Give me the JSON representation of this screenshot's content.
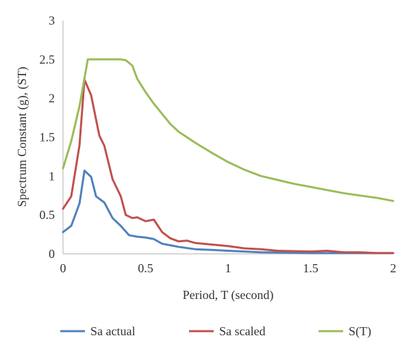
{
  "chart_data": {
    "type": "line",
    "title": "",
    "xlabel": "Period, T (second)",
    "ylabel": "Spectrum Constant (g), (ST)",
    "xlim": [
      0,
      2
    ],
    "ylim": [
      0,
      3
    ],
    "x_ticks": [
      "0",
      "0.5",
      "1",
      "1.5",
      "2"
    ],
    "y_ticks": [
      "0",
      "0.5",
      "1",
      "1.5",
      "2",
      "2.5",
      "3"
    ],
    "grid": false,
    "legend_position": "bottom",
    "series": [
      {
        "name": "Sa actual",
        "color": "#4f81bd",
        "points": [
          [
            0.0,
            0.28
          ],
          [
            0.05,
            0.36
          ],
          [
            0.1,
            0.65
          ],
          [
            0.13,
            1.07
          ],
          [
            0.17,
            0.99
          ],
          [
            0.2,
            0.74
          ],
          [
            0.25,
            0.66
          ],
          [
            0.3,
            0.46
          ],
          [
            0.35,
            0.36
          ],
          [
            0.4,
            0.24
          ],
          [
            0.45,
            0.22
          ],
          [
            0.5,
            0.21
          ],
          [
            0.55,
            0.19
          ],
          [
            0.6,
            0.13
          ],
          [
            0.7,
            0.09
          ],
          [
            0.8,
            0.06
          ],
          [
            0.9,
            0.05
          ],
          [
            1.0,
            0.04
          ],
          [
            1.2,
            0.02
          ],
          [
            1.5,
            0.01
          ],
          [
            2.0,
            0.01
          ]
        ]
      },
      {
        "name": "Sa scaled",
        "color": "#c0504d",
        "points": [
          [
            0.0,
            0.58
          ],
          [
            0.05,
            0.74
          ],
          [
            0.1,
            1.4
          ],
          [
            0.13,
            2.24
          ],
          [
            0.17,
            2.04
          ],
          [
            0.22,
            1.52
          ],
          [
            0.25,
            1.39
          ],
          [
            0.3,
            0.96
          ],
          [
            0.35,
            0.74
          ],
          [
            0.38,
            0.5
          ],
          [
            0.42,
            0.46
          ],
          [
            0.45,
            0.47
          ],
          [
            0.5,
            0.42
          ],
          [
            0.55,
            0.44
          ],
          [
            0.6,
            0.28
          ],
          [
            0.65,
            0.2
          ],
          [
            0.7,
            0.16
          ],
          [
            0.75,
            0.17
          ],
          [
            0.8,
            0.14
          ],
          [
            0.9,
            0.12
          ],
          [
            1.0,
            0.1
          ],
          [
            1.1,
            0.07
          ],
          [
            1.2,
            0.06
          ],
          [
            1.3,
            0.04
          ],
          [
            1.5,
            0.03
          ],
          [
            1.6,
            0.04
          ],
          [
            1.7,
            0.02
          ],
          [
            1.8,
            0.02
          ],
          [
            1.9,
            0.01
          ],
          [
            2.0,
            0.01
          ]
        ]
      },
      {
        "name": "S(T)",
        "color": "#9bbb59",
        "points": [
          [
            0.0,
            1.1
          ],
          [
            0.05,
            1.45
          ],
          [
            0.1,
            1.9
          ],
          [
            0.15,
            2.5
          ],
          [
            0.2,
            2.5
          ],
          [
            0.25,
            2.5
          ],
          [
            0.3,
            2.5
          ],
          [
            0.35,
            2.5
          ],
          [
            0.38,
            2.49
          ],
          [
            0.42,
            2.42
          ],
          [
            0.45,
            2.25
          ],
          [
            0.5,
            2.08
          ],
          [
            0.55,
            1.93
          ],
          [
            0.6,
            1.8
          ],
          [
            0.65,
            1.67
          ],
          [
            0.7,
            1.57
          ],
          [
            0.75,
            1.5
          ],
          [
            0.8,
            1.43
          ],
          [
            0.9,
            1.3
          ],
          [
            1.0,
            1.18
          ],
          [
            1.1,
            1.08
          ],
          [
            1.2,
            1.0
          ],
          [
            1.3,
            0.95
          ],
          [
            1.4,
            0.9
          ],
          [
            1.5,
            0.86
          ],
          [
            1.6,
            0.82
          ],
          [
            1.7,
            0.78
          ],
          [
            1.8,
            0.75
          ],
          [
            1.9,
            0.72
          ],
          [
            2.0,
            0.68
          ]
        ]
      }
    ]
  }
}
